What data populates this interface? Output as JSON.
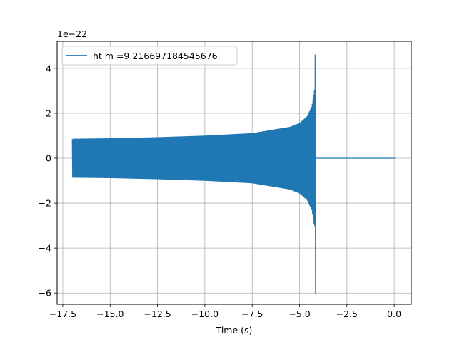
{
  "chart_data": {
    "type": "line",
    "title": "",
    "xlabel": "Time (s)",
    "ylabel": "",
    "offset_label": "1e−22",
    "xlim": [
      -17.8,
      0.9
    ],
    "ylim": [
      -6.5,
      5.2
    ],
    "xticks": [
      -17.5,
      -15.0,
      -12.5,
      -10.0,
      -7.5,
      -5.0,
      -2.5,
      0.0
    ],
    "xtick_labels": [
      "−17.5",
      "−15.0",
      "−12.5",
      "−10.0",
      "−7.5",
      "−5.0",
      "−2.5",
      "0.0"
    ],
    "yticks": [
      -6,
      -4,
      -2,
      0,
      2,
      4
    ],
    "ytick_labels": [
      "−6",
      "−4",
      "−2",
      "0",
      "2",
      "4"
    ],
    "grid": true,
    "legend_position": "upper-left",
    "series": [
      {
        "name": "ht m =9.216697184545676",
        "color": "#1f77b4",
        "t_start": -17.0,
        "t_merger": -4.18,
        "t_end": 0.05,
        "peak_max": 4.6,
        "peak_min": -6.0,
        "envelope": [
          {
            "t": -17.0,
            "amp": 0.85
          },
          {
            "t": -15.0,
            "amp": 0.87
          },
          {
            "t": -12.5,
            "amp": 0.92
          },
          {
            "t": -10.0,
            "amp": 0.99
          },
          {
            "t": -7.5,
            "amp": 1.1
          },
          {
            "t": -5.5,
            "amp": 1.38
          },
          {
            "t": -5.0,
            "amp": 1.55
          },
          {
            "t": -4.6,
            "amp": 1.85
          },
          {
            "t": -4.35,
            "amp": 2.3
          },
          {
            "t": -4.22,
            "amp": 3.0
          }
        ]
      }
    ]
  }
}
